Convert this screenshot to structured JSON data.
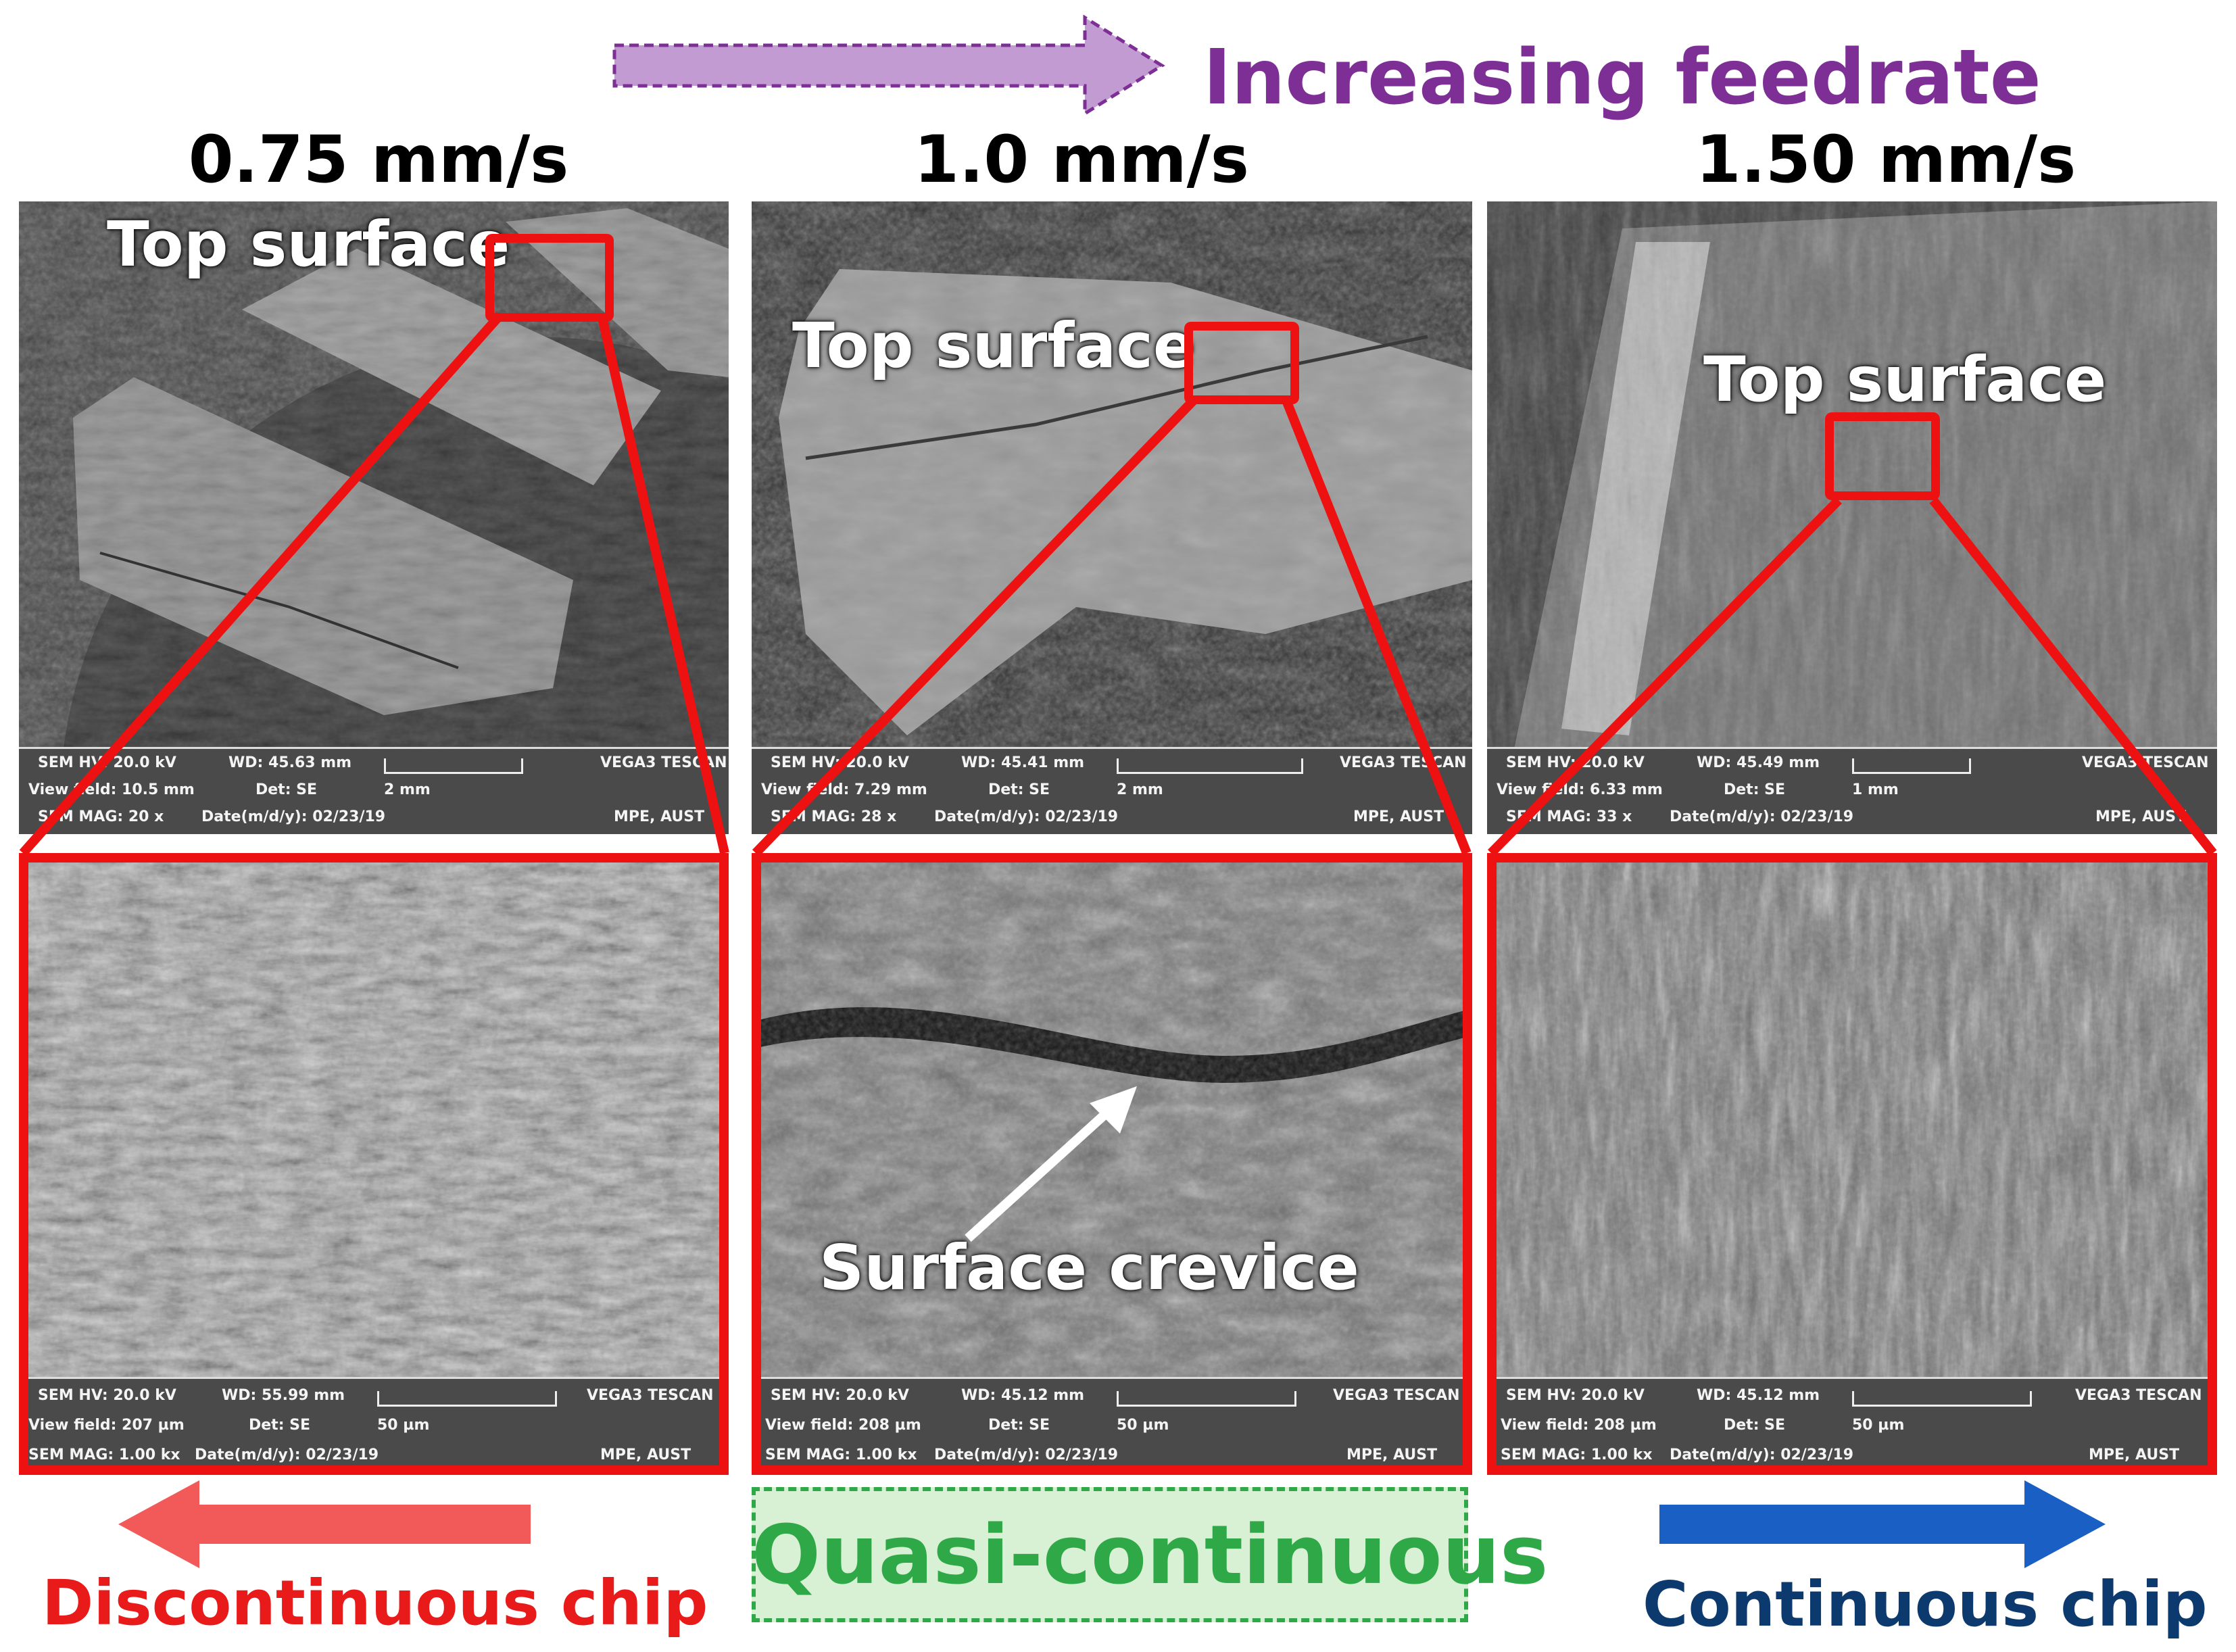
{
  "header": {
    "feed_label": "Increasing feedrate",
    "colors": {
      "feed": "#7d2f96"
    }
  },
  "columns": [
    {
      "speed": "0.75 mm/s",
      "top_label": "Top surface",
      "top_info": {
        "hv": "SEM HV: 20.0 kV",
        "wd": "WD: 45.63 mm",
        "brand": "VEGA3 TESCAN",
        "field": "View field: 10.5 mm",
        "det": "Det: SE",
        "scale": "2 mm",
        "mag": "SEM MAG: 20 x",
        "date": "Date(m/d/y): 02/23/19",
        "org": "MPE, AUST"
      },
      "bottom_info": {
        "hv": "SEM HV: 20.0 kV",
        "wd": "WD: 55.99 mm",
        "brand": "VEGA3 TESCAN",
        "field": "View field: 207 µm",
        "det": "Det: SE",
        "scale": "50 µm",
        "mag": "SEM MAG: 1.00 kx",
        "date": "Date(m/d/y): 02/23/19",
        "org": "MPE, AUST"
      }
    },
    {
      "speed": "1.0 mm/s",
      "top_label": "Top surface",
      "annotation": "Surface crevice",
      "top_info": {
        "hv": "SEM HV: 20.0 kV",
        "wd": "WD: 45.41 mm",
        "brand": "VEGA3 TESCAN",
        "field": "View field: 7.29 mm",
        "det": "Det: SE",
        "scale": "2 mm",
        "mag": "SEM MAG: 28 x",
        "date": "Date(m/d/y): 02/23/19",
        "org": "MPE, AUST"
      },
      "bottom_info": {
        "hv": "SEM HV: 20.0 kV",
        "wd": "WD: 45.12 mm",
        "brand": "VEGA3 TESCAN",
        "field": "View field: 208 µm",
        "det": "Det: SE",
        "scale": "50 µm",
        "mag": "SEM MAG: 1.00 kx",
        "date": "Date(m/d/y): 02/23/19",
        "org": "MPE, AUST"
      }
    },
    {
      "speed": "1.50 mm/s",
      "top_label": "Top surface",
      "top_info": {
        "hv": "SEM HV: 20.0 kV",
        "wd": "WD: 45.49 mm",
        "brand": "VEGA3 TESCAN",
        "field": "View field: 6.33 mm",
        "det": "Det: SE",
        "scale": "1 mm",
        "mag": "SEM MAG: 33 x",
        "date": "Date(m/d/y): 02/23/19",
        "org": "MPE, AUST"
      },
      "bottom_info": {
        "hv": "SEM HV: 20.0 kV",
        "wd": "WD: 45.12 mm",
        "brand": "VEGA3 TESCAN",
        "field": "View field: 208 µm",
        "det": "Det: SE",
        "scale": "50 µm",
        "mag": "SEM MAG: 1.00 kx",
        "date": "Date(m/d/y): 02/23/19",
        "org": "MPE, AUST"
      }
    }
  ],
  "footer": {
    "left": "Discontinuous chip",
    "center": "Quasi-continuous",
    "right": "Continuous chip",
    "colors": {
      "left": "#e81a1a",
      "center": "#2fa848",
      "right": "#0d3a6e",
      "right_arrow": "#1a5fc4"
    }
  },
  "colors": {
    "highlight": "#ee1111"
  }
}
